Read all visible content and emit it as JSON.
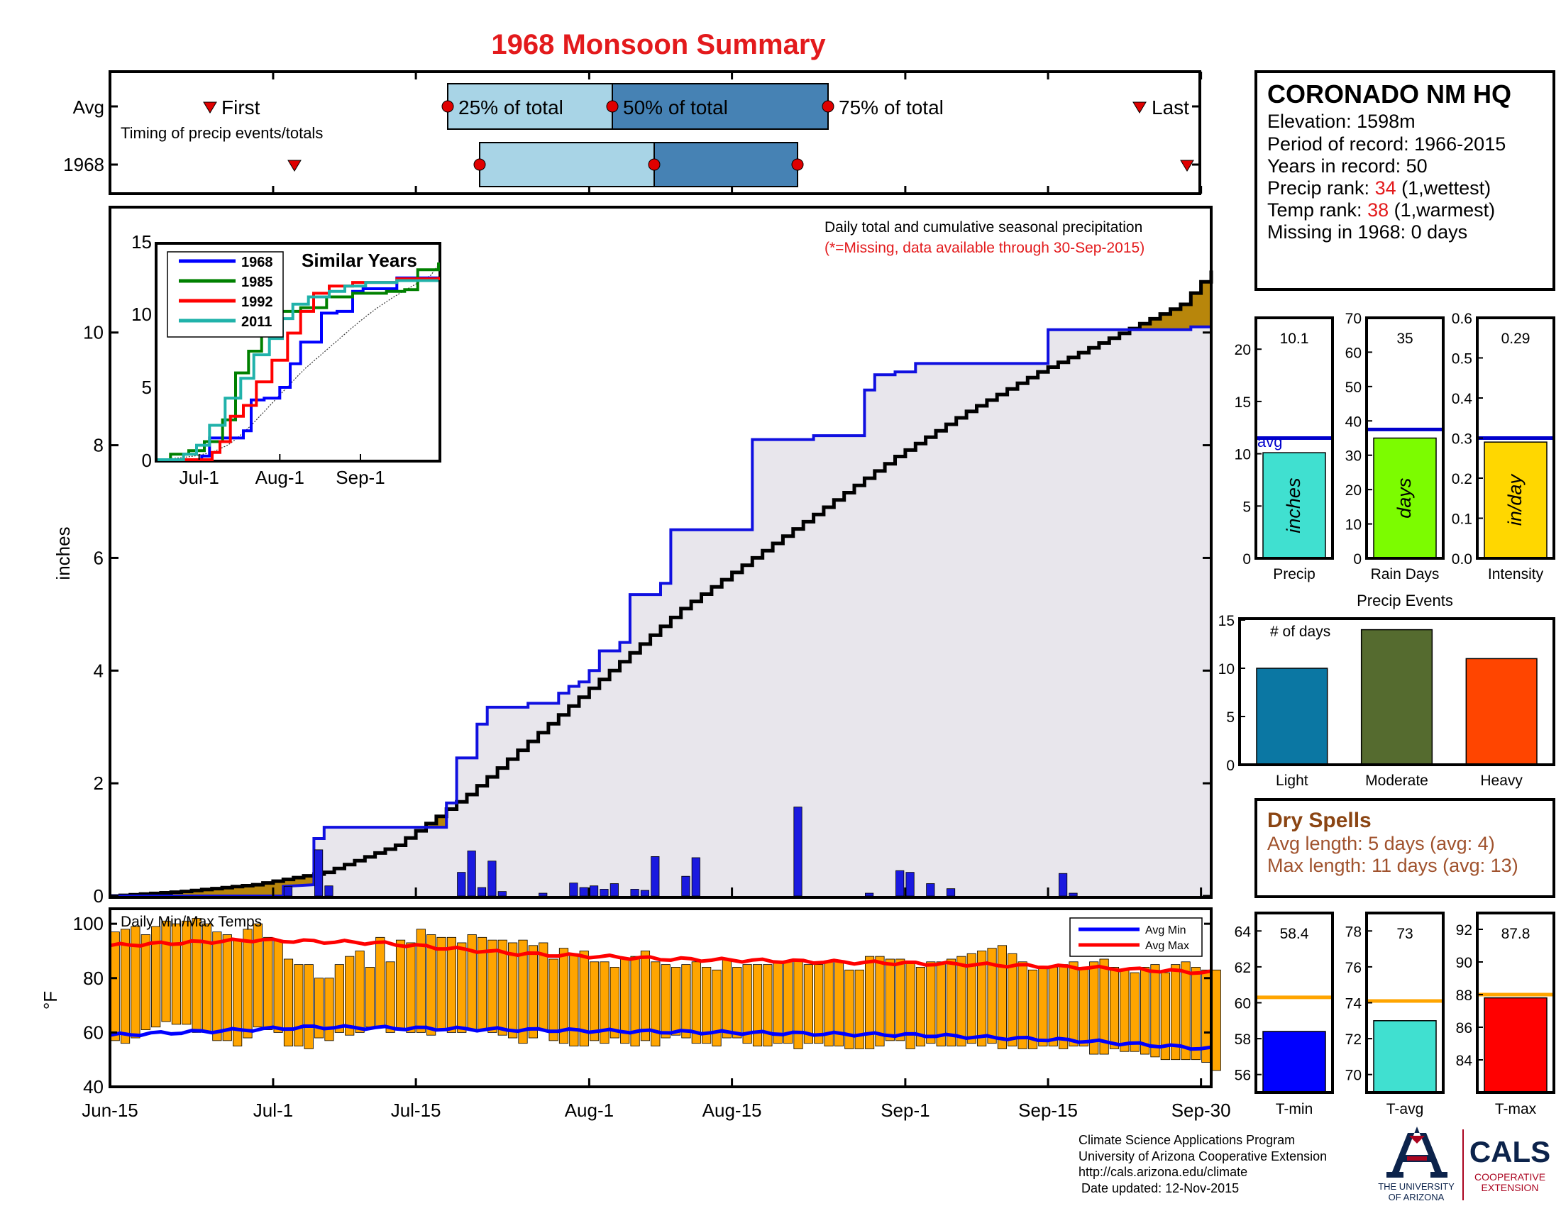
{
  "title": "1968 Monsoon Summary",
  "colors": {
    "title": "#e31a1c",
    "cum_fill": "#b8860b",
    "obs_fill": "#e8e6ec",
    "obs_line": "#1010e0",
    "daily_bar": "#1a1adf",
    "temp_bar": "#ffa500",
    "avg_min": "#0000ff",
    "avg_max": "#ff0000",
    "box_light": "#a8d4e6",
    "box_dark": "#4682b4",
    "marker": "#e00000",
    "dry_title": "#8b4513",
    "dry_text": "#a0522d",
    "red_text": "#e31a1c"
  },
  "timing": {
    "row_avg": "Avg",
    "row_year": "1968",
    "first_label": "First",
    "last_label": "Last",
    "pct25": "25% of total",
    "pct50": "50% of total",
    "pct75": "75% of total",
    "caption": "Timing of precip events/totals"
  },
  "station": {
    "name": "CORONADO NM HQ",
    "elevation": "Elevation: 1598m",
    "period": "Period of record: 1966-2015",
    "years": "Years in record: 50",
    "precip_rank_label": "Precip rank: ",
    "precip_rank_value": "34",
    "precip_rank_note": " (1,wettest)",
    "temp_rank_label": "Temp rank: ",
    "temp_rank_value": "38",
    "temp_rank_note": " (1,warmest)",
    "missing": "Missing in 1968: 0 days"
  },
  "main_panel": {
    "note1": "Daily total and cumulative seasonal precipitation",
    "note2": "(*=Missing, data available through 30-Sep-2015)",
    "ylabel": "inches",
    "temp_ylabel": "°F",
    "temp_note": "Daily Min/Max Temps",
    "legend_min": "Avg Min",
    "legend_max": "Avg Max",
    "x_ticks": [
      "Jun-15",
      "Jul-1",
      "Jul-15",
      "Aug-1",
      "Aug-15",
      "Sep-1",
      "Sep-15",
      "Sep-30"
    ]
  },
  "inset": {
    "title": "Similar Years",
    "x_ticks": [
      "Jul-1",
      "Aug-1",
      "Sep-1"
    ],
    "series": [
      "1968",
      "1985",
      "1992",
      "2011"
    ]
  },
  "small_bars": {
    "precip": {
      "value": "10.1",
      "unit": "inches",
      "label": "Precip",
      "avg_label": "avg"
    },
    "raindays": {
      "value": "35",
      "unit": "days",
      "label": "Rain Days"
    },
    "intensity": {
      "value": "0.29",
      "unit": "in/day",
      "label": "Intensity"
    }
  },
  "events": {
    "title": "Precip Events",
    "ylabel": "# of days",
    "categories": [
      "Light",
      "Moderate",
      "Heavy"
    ]
  },
  "dry_spells": {
    "title": "Dry Spells",
    "avg": "Avg length: 5 days (avg: 4)",
    "max": "Max length: 11 days (avg: 13)"
  },
  "temp_bars": {
    "tmin": {
      "value": "58.4",
      "label": "T-min"
    },
    "tavg": {
      "value": "73",
      "label": "T-avg"
    },
    "tmax": {
      "value": "87.8",
      "label": "T-max"
    }
  },
  "footer": {
    "line1": "Climate Science Applications Program",
    "line2": "University of Arizona Cooperative Extension",
    "line3": "http://cals.arizona.edu/climate",
    "line4": "Date updated: 12-Nov-2015",
    "ua1": "THE UNIVERSITY",
    "ua2": "OF ARIZONA",
    "cals": "CALS",
    "coop1": "COOPERATIVE",
    "coop2": "EXTENSION"
  },
  "chart_data": [
    {
      "type": "area",
      "name_hint": "cumulative precipitation",
      "x_start": "Jun-15",
      "x_end": "Sep-30",
      "x_ticks": [
        "Jun-15",
        "Jul-1",
        "Jul-15",
        "Aug-1",
        "Aug-15",
        "Sep-1",
        "Sep-15",
        "Sep-30"
      ],
      "ylabel": "inches",
      "ylim": [
        0,
        12.2
      ],
      "y_ticks": [
        0,
        2,
        4,
        6,
        8,
        10
      ],
      "avg_cumulative": [
        [
          0,
          0
        ],
        [
          7,
          0.08
        ],
        [
          14,
          0.2
        ],
        [
          21,
          0.42
        ],
        [
          28,
          0.9
        ],
        [
          35,
          1.8
        ],
        [
          42,
          2.9
        ],
        [
          49,
          4.0
        ],
        [
          56,
          5.1
        ],
        [
          63,
          6.0
        ],
        [
          70,
          6.9
        ],
        [
          77,
          7.8
        ],
        [
          84,
          8.6
        ],
        [
          91,
          9.3
        ],
        [
          98,
          9.9
        ],
        [
          105,
          10.5
        ],
        [
          108,
          11.1
        ]
      ],
      "obs_1968": [
        [
          0,
          0
        ],
        [
          17,
          0
        ],
        [
          17,
          0.17
        ],
        [
          20,
          0.2
        ],
        [
          20,
          1.02
        ],
        [
          21,
          1.02
        ],
        [
          21,
          1.22
        ],
        [
          33,
          1.22
        ],
        [
          33,
          1.65
        ],
        [
          34,
          1.65
        ],
        [
          34,
          2.45
        ],
        [
          36,
          2.45
        ],
        [
          36,
          3.05
        ],
        [
          37,
          3.05
        ],
        [
          37,
          3.35
        ],
        [
          41,
          3.35
        ],
        [
          41,
          3.42
        ],
        [
          44,
          3.42
        ],
        [
          44,
          3.6
        ],
        [
          45,
          3.6
        ],
        [
          45,
          3.72
        ],
        [
          46,
          3.72
        ],
        [
          46,
          3.8
        ],
        [
          47,
          3.8
        ],
        [
          47,
          4.0
        ],
        [
          48,
          4.0
        ],
        [
          48,
          4.35
        ],
        [
          50,
          4.35
        ],
        [
          50,
          4.5
        ],
        [
          51,
          4.5
        ],
        [
          51,
          5.35
        ],
        [
          54,
          5.35
        ],
        [
          54,
          5.55
        ],
        [
          55,
          5.55
        ],
        [
          55,
          6.5
        ],
        [
          63,
          6.5
        ],
        [
          63,
          8.1
        ],
        [
          69,
          8.1
        ],
        [
          69,
          8.17
        ],
        [
          74,
          8.17
        ],
        [
          74,
          8.98
        ],
        [
          75,
          8.98
        ],
        [
          75,
          9.25
        ],
        [
          77,
          9.25
        ],
        [
          77,
          9.3
        ],
        [
          79,
          9.3
        ],
        [
          79,
          9.45
        ],
        [
          92,
          9.45
        ],
        [
          92,
          10.05
        ],
        [
          106,
          10.05
        ],
        [
          106,
          10.1
        ],
        [
          108,
          10.1
        ]
      ],
      "daily_bars": [
        [
          17,
          0.17
        ],
        [
          20,
          0.82
        ],
        [
          21,
          0.18
        ],
        [
          34,
          0.42
        ],
        [
          35,
          0.8
        ],
        [
          36,
          0.15
        ],
        [
          37,
          0.62
        ],
        [
          38,
          0.08
        ],
        [
          42,
          0.05
        ],
        [
          45,
          0.23
        ],
        [
          46,
          0.15
        ],
        [
          47,
          0.18
        ],
        [
          48,
          0.12
        ],
        [
          49,
          0.22
        ],
        [
          51,
          0.12
        ],
        [
          52,
          0.1
        ],
        [
          53,
          0.7
        ],
        [
          56,
          0.35
        ],
        [
          57,
          0.68
        ],
        [
          67,
          1.58
        ],
        [
          74,
          0.05
        ],
        [
          77,
          0.45
        ],
        [
          78,
          0.42
        ],
        [
          80,
          0.22
        ],
        [
          82,
          0.13
        ],
        [
          93,
          0.4
        ],
        [
          94,
          0.05
        ]
      ]
    },
    {
      "type": "line",
      "title": "Similar Years",
      "xlabel": "",
      "ylabel": "",
      "ylim": [
        0,
        10.8
      ],
      "y_ticks": [
        0,
        5,
        10,
        15
      ],
      "series": [
        {
          "name": "1968",
          "points": [
            [
              0,
              0
            ],
            [
              17,
              0.2
            ],
            [
              20,
              1.2
            ],
            [
              33,
              1.6
            ],
            [
              36,
              3.3
            ],
            [
              41,
              3.4
            ],
            [
              47,
              4.0
            ],
            [
              51,
              5.3
            ],
            [
              55,
              6.5
            ],
            [
              63,
              8.1
            ],
            [
              69,
              8.2
            ],
            [
              75,
              9.3
            ],
            [
              79,
              9.45
            ],
            [
              92,
              10.05
            ],
            [
              108,
              10.1
            ]
          ]
        },
        {
          "name": "1985",
          "points": [
            [
              0,
              0
            ],
            [
              5,
              0.3
            ],
            [
              12,
              0.5
            ],
            [
              18,
              1.0
            ],
            [
              25,
              2.2
            ],
            [
              30,
              4.8
            ],
            [
              35,
              6.0
            ],
            [
              40,
              7.5
            ],
            [
              46,
              8.2
            ],
            [
              55,
              8.4
            ],
            [
              65,
              9.0
            ],
            [
              75,
              9.2
            ],
            [
              88,
              9.3
            ],
            [
              95,
              9.4
            ],
            [
              100,
              10.5
            ],
            [
              108,
              10.9
            ]
          ]
        },
        {
          "name": "1992",
          "points": [
            [
              0,
              0
            ],
            [
              19,
              0
            ],
            [
              21,
              0.4
            ],
            [
              24,
              1.0
            ],
            [
              28,
              2.4
            ],
            [
              33,
              3.0
            ],
            [
              38,
              4.3
            ],
            [
              44,
              5.5
            ],
            [
              50,
              7.0
            ],
            [
              55,
              8.2
            ],
            [
              60,
              9.2
            ],
            [
              66,
              9.6
            ],
            [
              75,
              9.8
            ],
            [
              92,
              10.0
            ],
            [
              108,
              10.1
            ]
          ]
        },
        {
          "name": "2011",
          "points": [
            [
              0,
              0
            ],
            [
              10,
              0.3
            ],
            [
              15,
              0.8
            ],
            [
              20,
              1.9
            ],
            [
              26,
              3.4
            ],
            [
              32,
              4.5
            ],
            [
              37,
              5.8
            ],
            [
              43,
              6.7
            ],
            [
              48,
              7.8
            ],
            [
              52,
              8.6
            ],
            [
              58,
              9.0
            ],
            [
              66,
              9.3
            ],
            [
              72,
              9.6
            ],
            [
              80,
              9.8
            ],
            [
              92,
              9.9
            ],
            [
              108,
              9.9
            ]
          ]
        }
      ]
    },
    {
      "type": "bar",
      "title": "Daily Min/Max Temps",
      "ylabel": "°F",
      "ylim": [
        40,
        105
      ],
      "y_ticks": [
        40,
        60,
        80,
        100
      ],
      "avg_min": [
        [
          0,
          59
        ],
        [
          20,
          62
        ],
        [
          40,
          61
        ],
        [
          60,
          60
        ],
        [
          80,
          59
        ],
        [
          95,
          57
        ],
        [
          108,
          54
        ]
      ],
      "avg_max": [
        [
          0,
          92
        ],
        [
          14,
          94
        ],
        [
          26,
          93
        ],
        [
          40,
          89
        ],
        [
          55,
          87
        ],
        [
          70,
          86
        ],
        [
          85,
          85
        ],
        [
          95,
          84
        ],
        [
          108,
          82
        ]
      ],
      "daily_max": [
        97,
        98,
        99,
        96,
        99,
        101,
        100,
        101,
        102,
        100,
        97,
        96,
        94,
        98,
        100,
        95,
        94,
        87,
        85,
        85,
        80,
        80,
        85,
        88,
        90,
        84,
        95,
        86,
        94,
        93,
        98,
        96,
        95,
        95,
        93,
        96,
        95,
        94,
        94,
        93,
        94,
        92,
        93,
        87,
        91,
        89,
        90,
        86,
        86,
        84,
        87,
        88,
        90,
        86,
        85,
        84,
        85,
        86,
        84,
        83,
        87,
        84,
        85,
        85,
        85,
        86,
        86,
        87,
        85,
        85,
        86,
        86,
        83,
        83,
        88,
        88,
        87,
        87,
        86,
        84,
        86,
        86,
        87,
        88,
        89,
        90,
        91,
        92,
        89,
        86,
        83,
        84,
        84,
        85,
        86,
        84,
        86,
        87,
        84,
        83,
        82,
        84,
        85,
        82,
        85,
        86,
        84,
        83,
        83
      ],
      "daily_min": [
        57,
        56,
        58,
        61,
        62,
        64,
        63,
        63,
        60,
        60,
        57,
        57,
        55,
        58,
        62,
        61,
        60,
        55,
        55,
        54,
        58,
        57,
        60,
        59,
        60,
        62,
        62,
        60,
        61,
        60,
        60,
        59,
        61,
        60,
        60,
        61,
        61,
        60,
        59,
        58,
        56,
        58,
        61,
        57,
        56,
        55,
        55,
        57,
        56,
        58,
        56,
        55,
        57,
        55,
        58,
        59,
        58,
        56,
        56,
        55,
        58,
        58,
        56,
        55,
        55,
        56,
        56,
        54,
        56,
        56,
        55,
        55,
        54,
        54,
        54,
        55,
        57,
        57,
        54,
        55,
        56,
        55,
        55,
        55,
        56,
        55,
        56,
        54,
        55,
        54,
        54,
        55,
        55,
        54,
        55,
        55,
        52,
        52,
        54,
        53,
        53,
        52,
        51,
        50,
        50,
        50,
        50,
        49,
        46
      ]
    },
    {
      "type": "bar",
      "title": "Precip",
      "categories": [
        "Precip"
      ],
      "values": [
        10.1
      ],
      "avg": 11.5,
      "ylim": [
        0,
        23
      ],
      "y_ticks": [
        0,
        5,
        10,
        15,
        20
      ]
    },
    {
      "type": "bar",
      "title": "Rain Days",
      "categories": [
        "Rain Days"
      ],
      "values": [
        35
      ],
      "avg": 37.5,
      "ylim": [
        0,
        70
      ],
      "y_ticks": [
        0,
        10,
        20,
        30,
        40,
        50,
        60,
        70
      ]
    },
    {
      "type": "bar",
      "title": "Intensity",
      "categories": [
        "Intensity"
      ],
      "values": [
        0.29
      ],
      "avg": 0.3,
      "ylim": [
        0,
        0.6
      ],
      "y_ticks": [
        0,
        0.1,
        0.2,
        0.3,
        0.4,
        0.5,
        0.6
      ]
    },
    {
      "type": "bar",
      "title": "Precip Events",
      "ylabel": "# of days",
      "categories": [
        "Light",
        "Moderate",
        "Heavy"
      ],
      "values": [
        10,
        14,
        11
      ],
      "colors": [
        "#0b77a3",
        "#556b2f",
        "#ff4500"
      ],
      "ylim": [
        0,
        15
      ],
      "y_ticks": [
        0,
        5,
        10,
        15
      ]
    },
    {
      "type": "bar",
      "title": "T-min",
      "categories": [
        "T-min"
      ],
      "values": [
        58.4
      ],
      "avg": 60.3,
      "ylim": [
        55,
        65
      ],
      "y_ticks": [
        56,
        58,
        60,
        62,
        64
      ]
    },
    {
      "type": "bar",
      "title": "T-avg",
      "categories": [
        "T-avg"
      ],
      "values": [
        73
      ],
      "avg": 74.1,
      "ylim": [
        69,
        79
      ],
      "y_ticks": [
        70,
        72,
        74,
        76,
        78
      ]
    },
    {
      "type": "bar",
      "title": "T-max",
      "categories": [
        "T-max"
      ],
      "values": [
        87.8
      ],
      "avg": 88,
      "ylim": [
        82,
        93
      ],
      "y_ticks": [
        84,
        86,
        88,
        90,
        92
      ]
    },
    {
      "type": "table",
      "title": "Timing of precip events/totals",
      "rows": [
        "Avg",
        "1968"
      ],
      "avg": {
        "first": "Jun-21",
        "p25": "Jul-15",
        "p50": "Aug-1",
        "p75": "Aug-23",
        "last": "Sep-17"
      },
      "year_1968": {
        "first": "Jul-2",
        "p25": "Jul-21",
        "p50": "Aug-6",
        "p75": "Aug-20",
        "last": "Sep-29"
      }
    }
  ]
}
